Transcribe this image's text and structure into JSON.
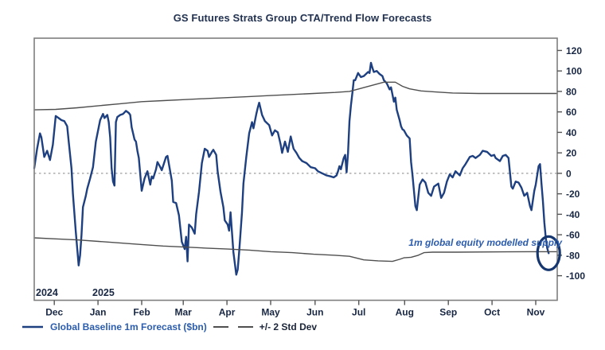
{
  "chart_data": {
    "type": "line",
    "title": "GS Futures Strats Group CTA/Trend Flow Forecasts",
    "x_axis": {
      "years": [
        {
          "label": "2024"
        },
        {
          "label": "2025"
        }
      ],
      "month_ticks": [
        {
          "label": "Dec",
          "day": 14
        },
        {
          "label": "Jan",
          "day": 44.5
        },
        {
          "label": "Feb",
          "day": 75
        },
        {
          "label": "Mar",
          "day": 104
        },
        {
          "label": "Apr",
          "day": 134.5
        },
        {
          "label": "May",
          "day": 165
        },
        {
          "label": "Jun",
          "day": 196
        },
        {
          "label": "Jul",
          "day": 226.5
        },
        {
          "label": "Aug",
          "day": 258.5
        },
        {
          "label": "Sep",
          "day": 289
        },
        {
          "label": "Oct",
          "day": 319.5
        },
        {
          "label": "Nov",
          "day": 350
        }
      ],
      "span_days": 365
    },
    "y_axis": {
      "side": "right",
      "ticks": [
        -100,
        -80,
        -60,
        -40,
        -20,
        0,
        20,
        40,
        60,
        80,
        100,
        120
      ],
      "ylim": [
        -124,
        132
      ]
    },
    "zero_line": {
      "value": 0,
      "style": "dotted",
      "color": "#b8b8b8"
    },
    "grid": "off",
    "legend_position": "bottom-left",
    "legend": [
      {
        "label": "Global Baseline 1m Forecast ($bn)",
        "color": "#2b5cad",
        "swatch": "line"
      },
      {
        "label": "+/- 2 Std Dev",
        "color": "#4f4f4f",
        "swatch": "dashes"
      }
    ],
    "annotation": {
      "text": "1m global equity modelled supply",
      "color": "#2b5cad"
    },
    "end_marker": {
      "shape": "ellipse",
      "color": "#15366f",
      "at": "last-point-of-forecast"
    },
    "series": [
      {
        "name": "Global Baseline 1m Forecast ($bn)",
        "color": "#1e4080",
        "style": "solid",
        "width": 2.4,
        "points": [
          [
            0,
            5
          ],
          [
            2,
            24
          ],
          [
            4,
            39
          ],
          [
            5,
            35
          ],
          [
            7,
            16
          ],
          [
            9,
            22
          ],
          [
            11,
            13
          ],
          [
            13,
            28
          ],
          [
            15,
            56
          ],
          [
            17,
            54
          ],
          [
            19,
            52
          ],
          [
            21,
            51
          ],
          [
            23,
            46
          ],
          [
            24,
            32
          ],
          [
            26,
            5
          ],
          [
            27,
            -20
          ],
          [
            29,
            -57
          ],
          [
            31,
            -90
          ],
          [
            32,
            -80
          ],
          [
            33,
            -60
          ],
          [
            34,
            -33
          ],
          [
            36,
            -22
          ],
          [
            37,
            -15
          ],
          [
            39,
            -5
          ],
          [
            41,
            6
          ],
          [
            43,
            31
          ],
          [
            45,
            45
          ],
          [
            46,
            52
          ],
          [
            48,
            58
          ],
          [
            49,
            54
          ],
          [
            51,
            57
          ],
          [
            52,
            50
          ],
          [
            53,
            35
          ],
          [
            54,
            5
          ],
          [
            55,
            -8
          ],
          [
            56,
            -12
          ],
          [
            57,
            50
          ],
          [
            58,
            55
          ],
          [
            60,
            57
          ],
          [
            62,
            58
          ],
          [
            64,
            61
          ],
          [
            66,
            59
          ],
          [
            67,
            57
          ],
          [
            68,
            45
          ],
          [
            70,
            33
          ],
          [
            71,
            31
          ],
          [
            72,
            22
          ],
          [
            73,
            15
          ],
          [
            75,
            -17
          ],
          [
            77,
            -5
          ],
          [
            79,
            2
          ],
          [
            81,
            -11
          ],
          [
            82,
            -3
          ],
          [
            83,
            -5
          ],
          [
            85,
            4
          ],
          [
            86,
            11
          ],
          [
            88,
            6
          ],
          [
            89,
            3
          ],
          [
            92,
            16
          ],
          [
            93,
            17
          ],
          [
            96,
            -7
          ],
          [
            97,
            -28
          ],
          [
            99,
            -29
          ],
          [
            101,
            -41
          ],
          [
            103,
            -67
          ],
          [
            105,
            -74
          ],
          [
            106,
            -62
          ],
          [
            107,
            -86
          ],
          [
            108,
            -50
          ],
          [
            110,
            -53
          ],
          [
            112,
            -59
          ],
          [
            113,
            -40
          ],
          [
            115,
            -18
          ],
          [
            117,
            10
          ],
          [
            119,
            24
          ],
          [
            121,
            22
          ],
          [
            122,
            16
          ],
          [
            124,
            21
          ],
          [
            125,
            23
          ],
          [
            127,
            18
          ],
          [
            128,
            2
          ],
          [
            130,
            -18
          ],
          [
            132,
            -33
          ],
          [
            133,
            -46
          ],
          [
            135,
            -50
          ],
          [
            136,
            -56
          ],
          [
            137,
            -38
          ],
          [
            139,
            -77
          ],
          [
            141,
            -99
          ],
          [
            142,
            -94
          ],
          [
            143,
            -77
          ],
          [
            145,
            -38
          ],
          [
            146,
            -10
          ],
          [
            148,
            16
          ],
          [
            150,
            39
          ],
          [
            152,
            50
          ],
          [
            153,
            44
          ],
          [
            155,
            58
          ],
          [
            156,
            64
          ],
          [
            157,
            69
          ],
          [
            159,
            57
          ],
          [
            161,
            51
          ],
          [
            164,
            47
          ],
          [
            166,
            37
          ],
          [
            168,
            42
          ],
          [
            170,
            40
          ],
          [
            172,
            28
          ],
          [
            173,
            20
          ],
          [
            175,
            31
          ],
          [
            177,
            21
          ],
          [
            179,
            36
          ],
          [
            181,
            24
          ],
          [
            183,
            20
          ],
          [
            185,
            15
          ],
          [
            187,
            12
          ],
          [
            190,
            10
          ],
          [
            193,
            6
          ],
          [
            196,
            5
          ],
          [
            198,
            2
          ],
          [
            201,
            0
          ],
          [
            204,
            -2
          ],
          [
            207,
            -3
          ],
          [
            209,
            -4
          ],
          [
            211,
            -2
          ],
          [
            212,
            2
          ],
          [
            213,
            7
          ],
          [
            214,
            4
          ],
          [
            216,
            15
          ],
          [
            217,
            18
          ],
          [
            218,
            1
          ],
          [
            219,
            20
          ],
          [
            220,
            51
          ],
          [
            221,
            66
          ],
          [
            222,
            78
          ],
          [
            223,
            91
          ],
          [
            224,
            91
          ],
          [
            226,
            98
          ],
          [
            228,
            94
          ],
          [
            230,
            95
          ],
          [
            233,
            99
          ],
          [
            234,
            98
          ],
          [
            235,
            108
          ],
          [
            236,
            103
          ],
          [
            237,
            99
          ],
          [
            239,
            100
          ],
          [
            241,
            97
          ],
          [
            243,
            95
          ],
          [
            244,
            91
          ],
          [
            246,
            88
          ],
          [
            248,
            82
          ],
          [
            249,
            84
          ],
          [
            251,
            70
          ],
          [
            252,
            74
          ],
          [
            253,
            62
          ],
          [
            255,
            52
          ],
          [
            256,
            46
          ],
          [
            257,
            43
          ],
          [
            258,
            42
          ],
          [
            260,
            37
          ],
          [
            262,
            34
          ],
          [
            263,
            11
          ],
          [
            264,
            -2
          ],
          [
            266,
            -32
          ],
          [
            267,
            -36
          ],
          [
            269,
            -11
          ],
          [
            271,
            -6
          ],
          [
            273,
            -9
          ],
          [
            275,
            -19
          ],
          [
            277,
            -22
          ],
          [
            279,
            -13
          ],
          [
            282,
            -10
          ],
          [
            284,
            -24
          ],
          [
            286,
            -19
          ],
          [
            288,
            -8
          ],
          [
            290,
            -1
          ],
          [
            292,
            -4
          ],
          [
            294,
            2
          ],
          [
            297,
            -2
          ],
          [
            299,
            5
          ],
          [
            301,
            9
          ],
          [
            304,
            16
          ],
          [
            306,
            17
          ],
          [
            308,
            15
          ],
          [
            311,
            18
          ],
          [
            313,
            22
          ],
          [
            316,
            21
          ],
          [
            319,
            17
          ],
          [
            321,
            18
          ],
          [
            322,
            15
          ],
          [
            325,
            12
          ],
          [
            327,
            17
          ],
          [
            329,
            18
          ],
          [
            331,
            15
          ],
          [
            333,
            -13
          ],
          [
            334,
            -15
          ],
          [
            336,
            -8
          ],
          [
            338,
            -9
          ],
          [
            340,
            -14
          ],
          [
            342,
            -22
          ],
          [
            344,
            -19
          ],
          [
            346,
            -32
          ],
          [
            347,
            -36
          ],
          [
            349,
            -17
          ],
          [
            350,
            -11
          ],
          [
            352,
            7
          ],
          [
            353,
            9
          ],
          [
            354,
            -10
          ],
          [
            355,
            -27
          ],
          [
            356,
            -48
          ],
          [
            357,
            -63
          ],
          [
            358,
            -73
          ],
          [
            359,
            -78
          ]
        ]
      },
      {
        "name": "+2 Std Dev",
        "color": "#4f4f4f",
        "style": "solid",
        "width": 1.4,
        "points": [
          [
            0,
            62
          ],
          [
            15,
            62.5
          ],
          [
            30,
            64
          ],
          [
            45,
            66
          ],
          [
            60,
            68
          ],
          [
            75,
            70
          ],
          [
            90,
            71
          ],
          [
            105,
            72
          ],
          [
            120,
            73
          ],
          [
            135,
            74
          ],
          [
            150,
            75
          ],
          [
            165,
            76
          ],
          [
            180,
            77
          ],
          [
            195,
            78
          ],
          [
            210,
            79
          ],
          [
            220,
            80
          ],
          [
            228,
            83
          ],
          [
            236,
            86
          ],
          [
            244,
            89
          ],
          [
            252,
            89
          ],
          [
            257,
            85
          ],
          [
            262,
            82.5
          ],
          [
            270,
            80.5
          ],
          [
            280,
            79.5
          ],
          [
            292,
            78.5
          ],
          [
            310,
            78
          ],
          [
            335,
            78
          ],
          [
            365,
            78
          ]
        ]
      },
      {
        "name": "-2 Std Dev",
        "color": "#4f4f4f",
        "style": "solid",
        "width": 1.4,
        "points": [
          [
            0,
            -63
          ],
          [
            15,
            -64
          ],
          [
            30,
            -65
          ],
          [
            45,
            -66.5
          ],
          [
            60,
            -68
          ],
          [
            75,
            -69.5
          ],
          [
            90,
            -71
          ],
          [
            105,
            -72
          ],
          [
            120,
            -73
          ],
          [
            135,
            -74
          ],
          [
            150,
            -75
          ],
          [
            165,
            -76.5
          ],
          [
            180,
            -77.5
          ],
          [
            195,
            -79
          ],
          [
            210,
            -80
          ],
          [
            220,
            -81
          ],
          [
            230,
            -84.5
          ],
          [
            240,
            -85.5
          ],
          [
            250,
            -86
          ],
          [
            255,
            -84
          ],
          [
            258,
            -82.5
          ],
          [
            263,
            -82
          ],
          [
            268,
            -80
          ],
          [
            272,
            -77.5
          ],
          [
            278,
            -77
          ],
          [
            295,
            -77
          ],
          [
            320,
            -76.8
          ],
          [
            345,
            -76.5
          ],
          [
            365,
            -76.5
          ]
        ]
      }
    ]
  }
}
